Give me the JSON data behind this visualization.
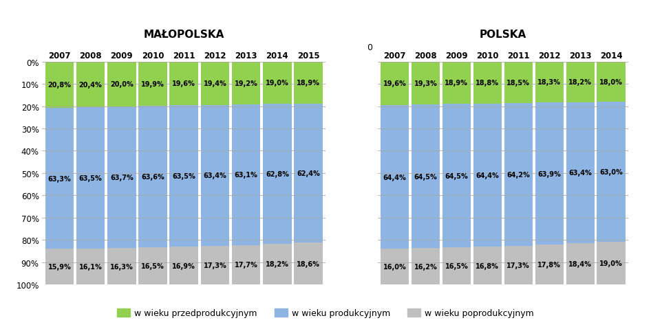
{
  "title_left": "MAŁOPOLSKA",
  "title_right": "POLSKA",
  "years_left": [
    "2007",
    "2008",
    "2009",
    "2010",
    "2011",
    "2012",
    "2013",
    "2014",
    "2015"
  ],
  "years_right": [
    "2007",
    "2008",
    "2009",
    "2010",
    "2011",
    "2012",
    "2013",
    "2014"
  ],
  "przedprodukcyjny_left": [
    20.8,
    20.4,
    20.0,
    19.9,
    19.6,
    19.4,
    19.2,
    19.0,
    18.9
  ],
  "produkcyjny_left": [
    63.3,
    63.5,
    63.7,
    63.6,
    63.5,
    63.4,
    63.1,
    62.8,
    62.4
  ],
  "poprodukcyjny_left": [
    15.9,
    16.1,
    16.3,
    16.5,
    16.9,
    17.3,
    17.7,
    18.2,
    18.6
  ],
  "przedprodukcyjny_right": [
    19.6,
    19.3,
    18.9,
    18.8,
    18.5,
    18.3,
    18.2,
    18.0
  ],
  "produkcyjny_right": [
    64.4,
    64.5,
    64.5,
    64.4,
    64.2,
    63.9,
    63.4,
    63.0
  ],
  "poprodukcyjny_right": [
    16.0,
    16.2,
    16.5,
    16.8,
    17.3,
    17.8,
    18.4,
    19.0
  ],
  "color_przedprodukcyjny": "#92d050",
  "color_produkcyjny": "#8db4e2",
  "color_poprodukcyjny": "#bfbfbf",
  "legend_labels": [
    "w wieku przedprodukcyjnym",
    "w wieku produkcyjnym",
    "w wieku poprodukcyjnym"
  ],
  "yticks": [
    0,
    10,
    20,
    30,
    40,
    50,
    60,
    70,
    80,
    90,
    100
  ],
  "bar_width": 0.92,
  "gap_label": "0"
}
